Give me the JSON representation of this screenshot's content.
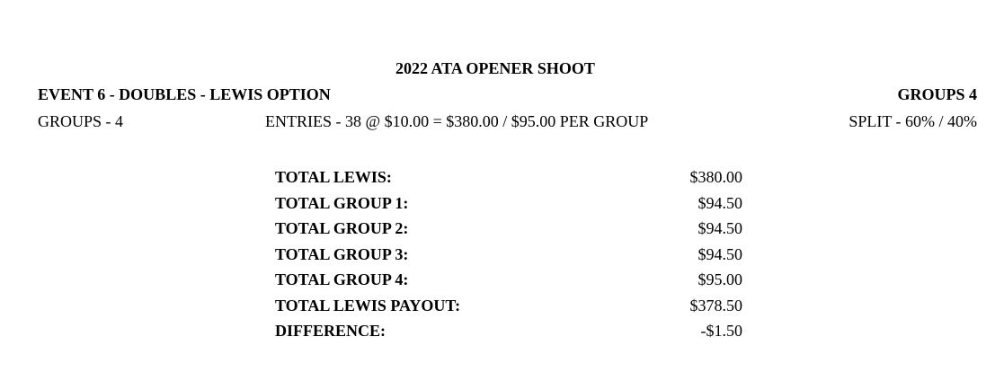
{
  "title": "2022 ATA OPENER SHOOT",
  "event": "EVENT 6 - DOUBLES - LEWIS OPTION",
  "groups_header": "GROUPS 4",
  "groups": "GROUPS - 4",
  "entries": "ENTRIES - 38 @ $10.00 = $380.00 / $95.00 PER GROUP",
  "split": "SPLIT - 60% / 40%",
  "totals": [
    {
      "label": "TOTAL LEWIS:",
      "value": "$380.00"
    },
    {
      "label": "TOTAL GROUP 1:",
      "value": "$94.50"
    },
    {
      "label": "TOTAL GROUP 2:",
      "value": "$94.50"
    },
    {
      "label": "TOTAL GROUP 3:",
      "value": "$94.50"
    },
    {
      "label": "TOTAL GROUP 4:",
      "value": "$95.00"
    },
    {
      "label": "TOTAL LEWIS PAYOUT:",
      "value": "$378.50"
    },
    {
      "label": "DIFFERENCE:",
      "value": "-$1.50"
    }
  ]
}
